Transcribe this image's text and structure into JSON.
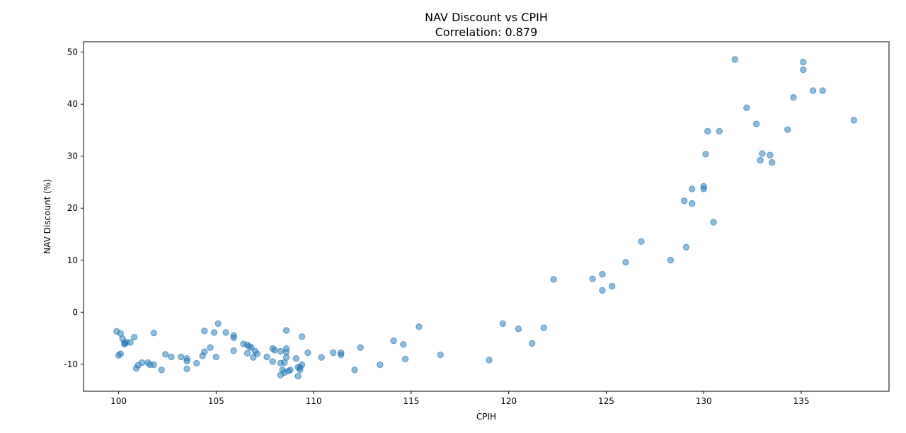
{
  "chart_data": {
    "type": "scatter",
    "title": "NAV Discount vs CPIH",
    "subtitle": "Correlation: 0.879",
    "xlabel": "CPIH",
    "ylabel": "NAV Discount (%)",
    "xlim": [
      98.2,
      139.5
    ],
    "ylim": [
      -15.2,
      52.0
    ],
    "xticks": [
      100,
      105,
      110,
      115,
      120,
      125,
      130,
      135
    ],
    "yticks": [
      -10,
      0,
      10,
      20,
      30,
      40,
      50
    ],
    "grid": false,
    "color": "#1f77b4",
    "points": [
      [
        99.9,
        -3.7
      ],
      [
        100.1,
        -4.1
      ],
      [
        100.0,
        -8.3
      ],
      [
        100.1,
        -8.0
      ],
      [
        100.2,
        -5.1
      ],
      [
        100.3,
        -5.9
      ],
      [
        100.3,
        -6.2
      ],
      [
        100.4,
        -5.8
      ],
      [
        100.6,
        -5.8
      ],
      [
        100.8,
        -4.8
      ],
      [
        100.9,
        -10.8
      ],
      [
        101.0,
        -10.2
      ],
      [
        101.2,
        -9.7
      ],
      [
        101.5,
        -9.7
      ],
      [
        101.6,
        -10.1
      ],
      [
        101.8,
        -10.1
      ],
      [
        101.8,
        -4.0
      ],
      [
        102.2,
        -11.1
      ],
      [
        102.4,
        -8.1
      ],
      [
        102.7,
        -8.6
      ],
      [
        103.2,
        -8.6
      ],
      [
        103.5,
        -8.9
      ],
      [
        103.5,
        -9.4
      ],
      [
        103.5,
        -10.9
      ],
      [
        104.0,
        -9.8
      ],
      [
        104.3,
        -8.4
      ],
      [
        104.4,
        -7.6
      ],
      [
        104.4,
        -3.6
      ],
      [
        104.7,
        -6.8
      ],
      [
        104.9,
        -3.9
      ],
      [
        105.0,
        -8.6
      ],
      [
        105.1,
        -2.2
      ],
      [
        105.5,
        -3.9
      ],
      [
        105.9,
        -4.5
      ],
      [
        105.9,
        -4.9
      ],
      [
        105.9,
        -7.4
      ],
      [
        106.4,
        -6.1
      ],
      [
        106.6,
        -6.3
      ],
      [
        106.6,
        -7.9
      ],
      [
        106.7,
        -6.6
      ],
      [
        106.8,
        -6.8
      ],
      [
        106.9,
        -8.7
      ],
      [
        107.0,
        -7.5
      ],
      [
        107.1,
        -8.0
      ],
      [
        107.6,
        -8.6
      ],
      [
        107.9,
        -7.0
      ],
      [
        107.9,
        -9.5
      ],
      [
        108.0,
        -7.3
      ],
      [
        108.3,
        -7.5
      ],
      [
        108.3,
        -9.8
      ],
      [
        108.3,
        -12.1
      ],
      [
        108.4,
        -11.1
      ],
      [
        108.5,
        -9.7
      ],
      [
        108.5,
        -11.6
      ],
      [
        108.6,
        -3.5
      ],
      [
        108.6,
        -7.0
      ],
      [
        108.6,
        -7.7
      ],
      [
        108.6,
        -8.7
      ],
      [
        108.7,
        -11.3
      ],
      [
        108.8,
        -11.1
      ],
      [
        109.1,
        -8.9
      ],
      [
        109.2,
        -10.6
      ],
      [
        109.2,
        -12.3
      ],
      [
        109.3,
        -10.6
      ],
      [
        109.3,
        -11.1
      ],
      [
        109.4,
        -10.1
      ],
      [
        109.4,
        -4.7
      ],
      [
        109.7,
        -7.8
      ],
      [
        110.4,
        -8.7
      ],
      [
        111.0,
        -7.8
      ],
      [
        111.4,
        -7.8
      ],
      [
        111.4,
        -8.2
      ],
      [
        112.1,
        -11.1
      ],
      [
        112.4,
        -6.8
      ],
      [
        113.4,
        -10.1
      ],
      [
        114.1,
        -5.5
      ],
      [
        114.6,
        -6.2
      ],
      [
        114.7,
        -9.0
      ],
      [
        115.4,
        -2.8
      ],
      [
        116.5,
        -8.2
      ],
      [
        119.0,
        -9.2
      ],
      [
        119.7,
        -2.2
      ],
      [
        120.5,
        -3.2
      ],
      [
        121.2,
        -6.0
      ],
      [
        121.8,
        -3.0
      ],
      [
        122.3,
        6.3
      ],
      [
        124.3,
        6.4
      ],
      [
        124.8,
        7.3
      ],
      [
        124.8,
        4.2
      ],
      [
        125.3,
        5.0
      ],
      [
        126.0,
        9.6
      ],
      [
        126.8,
        13.6
      ],
      [
        128.3,
        10.0
      ],
      [
        129.0,
        21.4
      ],
      [
        129.1,
        12.5
      ],
      [
        129.4,
        23.7
      ],
      [
        129.4,
        20.9
      ],
      [
        130.0,
        24.2
      ],
      [
        130.0,
        23.7
      ],
      [
        130.1,
        30.4
      ],
      [
        130.2,
        34.8
      ],
      [
        130.5,
        17.3
      ],
      [
        130.8,
        34.8
      ],
      [
        131.6,
        48.6
      ],
      [
        132.2,
        39.3
      ],
      [
        132.7,
        36.2
      ],
      [
        132.9,
        29.2
      ],
      [
        133.0,
        30.5
      ],
      [
        133.4,
        30.2
      ],
      [
        133.5,
        28.8
      ],
      [
        134.3,
        35.1
      ],
      [
        134.6,
        41.3
      ],
      [
        135.1,
        48.1
      ],
      [
        135.1,
        46.6
      ],
      [
        135.6,
        42.6
      ],
      [
        136.1,
        42.6
      ],
      [
        137.7,
        36.9
      ]
    ]
  }
}
